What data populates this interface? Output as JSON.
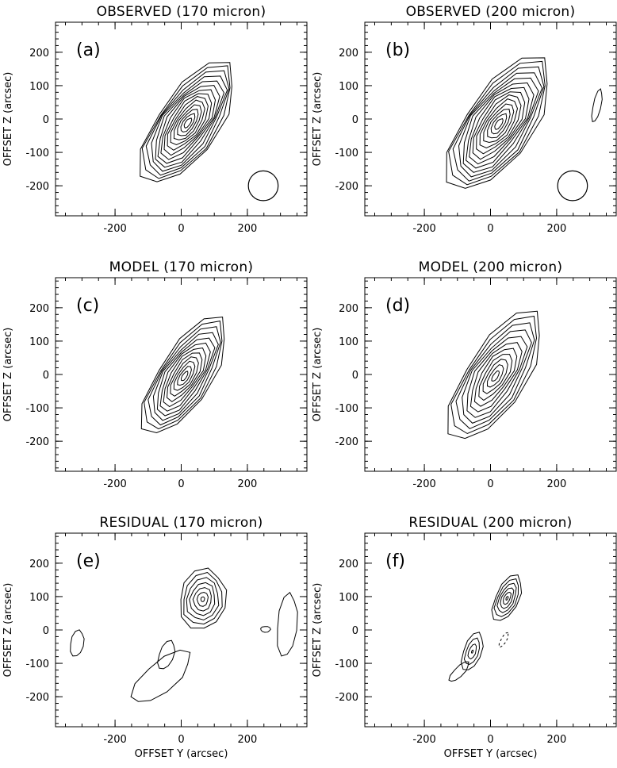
{
  "figure": {
    "xlabel": "OFFSET Y (arcsec)",
    "ylabel": "OFFSET Z (arcsec)"
  },
  "chart_data": [
    {
      "type": "contour",
      "panel": "a",
      "title": "OBSERVED (170 micron)",
      "letter": "(a)",
      "xlabel": "",
      "ylabel": "OFFSET Z (arcsec)",
      "xlim": [
        -380,
        380
      ],
      "ylim": [
        -290,
        290
      ],
      "xticks": [
        -200,
        0,
        200
      ],
      "yticks": [
        -200,
        -100,
        0,
        100,
        200
      ],
      "blobs": [
        {
          "cx": 20,
          "cy": -12,
          "angle": 55,
          "a": 215,
          "b": 92,
          "levels": 14,
          "style": "solid"
        }
      ],
      "beam": {
        "cx": 248,
        "cy": -200,
        "r": 45
      },
      "extras": []
    },
    {
      "type": "contour",
      "panel": "b",
      "title": "OBSERVED (200 micron)",
      "letter": "(b)",
      "xlabel": "",
      "ylabel": "OFFSET Z (arcsec)",
      "xlim": [
        -380,
        380
      ],
      "ylim": [
        -290,
        290
      ],
      "xticks": [
        -200,
        0,
        200
      ],
      "yticks": [
        -200,
        -100,
        0,
        100,
        200
      ],
      "blobs": [
        {
          "cx": 25,
          "cy": -15,
          "angle": 55,
          "a": 235,
          "b": 102,
          "levels": 14,
          "style": "solid"
        }
      ],
      "beam": {
        "cx": 248,
        "cy": -200,
        "r": 45
      },
      "extras": [
        {
          "cx": 322,
          "cy": 40,
          "angle": 78,
          "a": 50,
          "b": 12,
          "levels": 1,
          "style": "solid"
        }
      ]
    },
    {
      "type": "contour",
      "panel": "c",
      "title": "MODEL (170 micron)",
      "letter": "(c)",
      "xlabel": "",
      "ylabel": "OFFSET Z (arcsec)",
      "xlim": [
        -380,
        380
      ],
      "ylim": [
        -290,
        290
      ],
      "xticks": [
        -200,
        0,
        200
      ],
      "yticks": [
        -200,
        -100,
        0,
        100,
        200
      ],
      "blobs": [
        {
          "cx": 10,
          "cy": -5,
          "angle": 57,
          "a": 205,
          "b": 80,
          "levels": 12,
          "style": "solid"
        }
      ],
      "beam": null,
      "extras": []
    },
    {
      "type": "contour",
      "panel": "d",
      "title": "MODEL (200 micron)",
      "letter": "(d)",
      "xlabel": "",
      "ylabel": "OFFSET Z (arcsec)",
      "xlim": [
        -380,
        380
      ],
      "ylim": [
        -290,
        290
      ],
      "xticks": [
        -200,
        0,
        200
      ],
      "yticks": [
        -200,
        -100,
        0,
        100,
        200
      ],
      "blobs": [
        {
          "cx": 15,
          "cy": -5,
          "angle": 57,
          "a": 225,
          "b": 90,
          "levels": 11,
          "style": "solid"
        }
      ],
      "beam": null,
      "extras": []
    },
    {
      "type": "contour",
      "panel": "e",
      "title": "RESIDUAL (170 micron)",
      "letter": "(e)",
      "xlabel": "OFFSET Y (arcsec)",
      "ylabel": "OFFSET Z (arcsec)",
      "xlim": [
        -380,
        380
      ],
      "ylim": [
        -290,
        290
      ],
      "xticks": [
        -200,
        0,
        200
      ],
      "yticks": [
        -200,
        -100,
        0,
        100,
        200
      ],
      "blobs": [
        {
          "cx": 65,
          "cy": 92,
          "angle": 80,
          "a": 92,
          "b": 70,
          "levels": 7,
          "style": "solid"
        },
        {
          "cx": -60,
          "cy": -140,
          "angle": 40,
          "a": 110,
          "b": 45,
          "levels": 1,
          "style": "solid"
        },
        {
          "cx": -45,
          "cy": -75,
          "angle": 70,
          "a": 45,
          "b": 22,
          "levels": 1,
          "style": "solid"
        },
        {
          "cx": -315,
          "cy": -40,
          "angle": 80,
          "a": 40,
          "b": 20,
          "levels": 1,
          "style": "solid"
        },
        {
          "cx": 320,
          "cy": 15,
          "angle": 85,
          "a": 95,
          "b": 30,
          "levels": 1,
          "style": "solid"
        },
        {
          "cx": 255,
          "cy": 2,
          "angle": 0,
          "a": 15,
          "b": 9,
          "levels": 1,
          "style": "solid"
        }
      ],
      "beam": null,
      "extras": []
    },
    {
      "type": "contour",
      "panel": "f",
      "title": "RESIDUAL (200 micron)",
      "letter": "(f)",
      "xlabel": "OFFSET Y (arcsec)",
      "ylabel": "OFFSET Z (arcsec)",
      "xlim": [
        -380,
        380
      ],
      "ylim": [
        -290,
        290
      ],
      "xticks": [
        -200,
        0,
        200
      ],
      "yticks": [
        -200,
        -100,
        0,
        100,
        200
      ],
      "blobs": [
        {
          "cx": 50,
          "cy": 95,
          "angle": 65,
          "a": 75,
          "b": 35,
          "levels": 6,
          "style": "solid"
        },
        {
          "cx": -55,
          "cy": -65,
          "angle": 70,
          "a": 60,
          "b": 27,
          "levels": 4,
          "style": "solid"
        },
        {
          "cx": -95,
          "cy": -125,
          "angle": 45,
          "a": 40,
          "b": 14,
          "levels": 1,
          "style": "solid"
        },
        {
          "cx": 40,
          "cy": -30,
          "angle": 60,
          "a": 25,
          "b": 8,
          "levels": 1,
          "style": "dashed"
        }
      ],
      "beam": null,
      "extras": []
    }
  ]
}
